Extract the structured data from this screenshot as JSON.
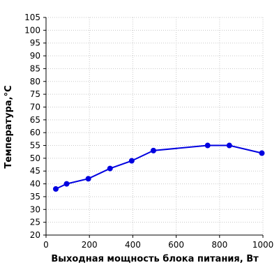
{
  "chart_data": {
    "type": "line",
    "xlabel": "Выходная мощность блока питания, Вт",
    "ylabel": "Температура,°C",
    "xlim": [
      0,
      1000
    ],
    "ylim": [
      20,
      105
    ],
    "x_ticks": [
      0,
      200,
      400,
      600,
      800,
      1000
    ],
    "y_ticks": [
      20,
      25,
      30,
      35,
      40,
      45,
      50,
      55,
      60,
      65,
      70,
      75,
      80,
      85,
      90,
      95,
      100,
      105
    ],
    "grid": true,
    "series": [
      {
        "x": [
          45,
          95,
          195,
          295,
          395,
          495,
          745,
          845,
          995
        ],
        "y": [
          38,
          40,
          42,
          46,
          49,
          53,
          55,
          55,
          52
        ],
        "color": "#0000e0"
      }
    ]
  }
}
